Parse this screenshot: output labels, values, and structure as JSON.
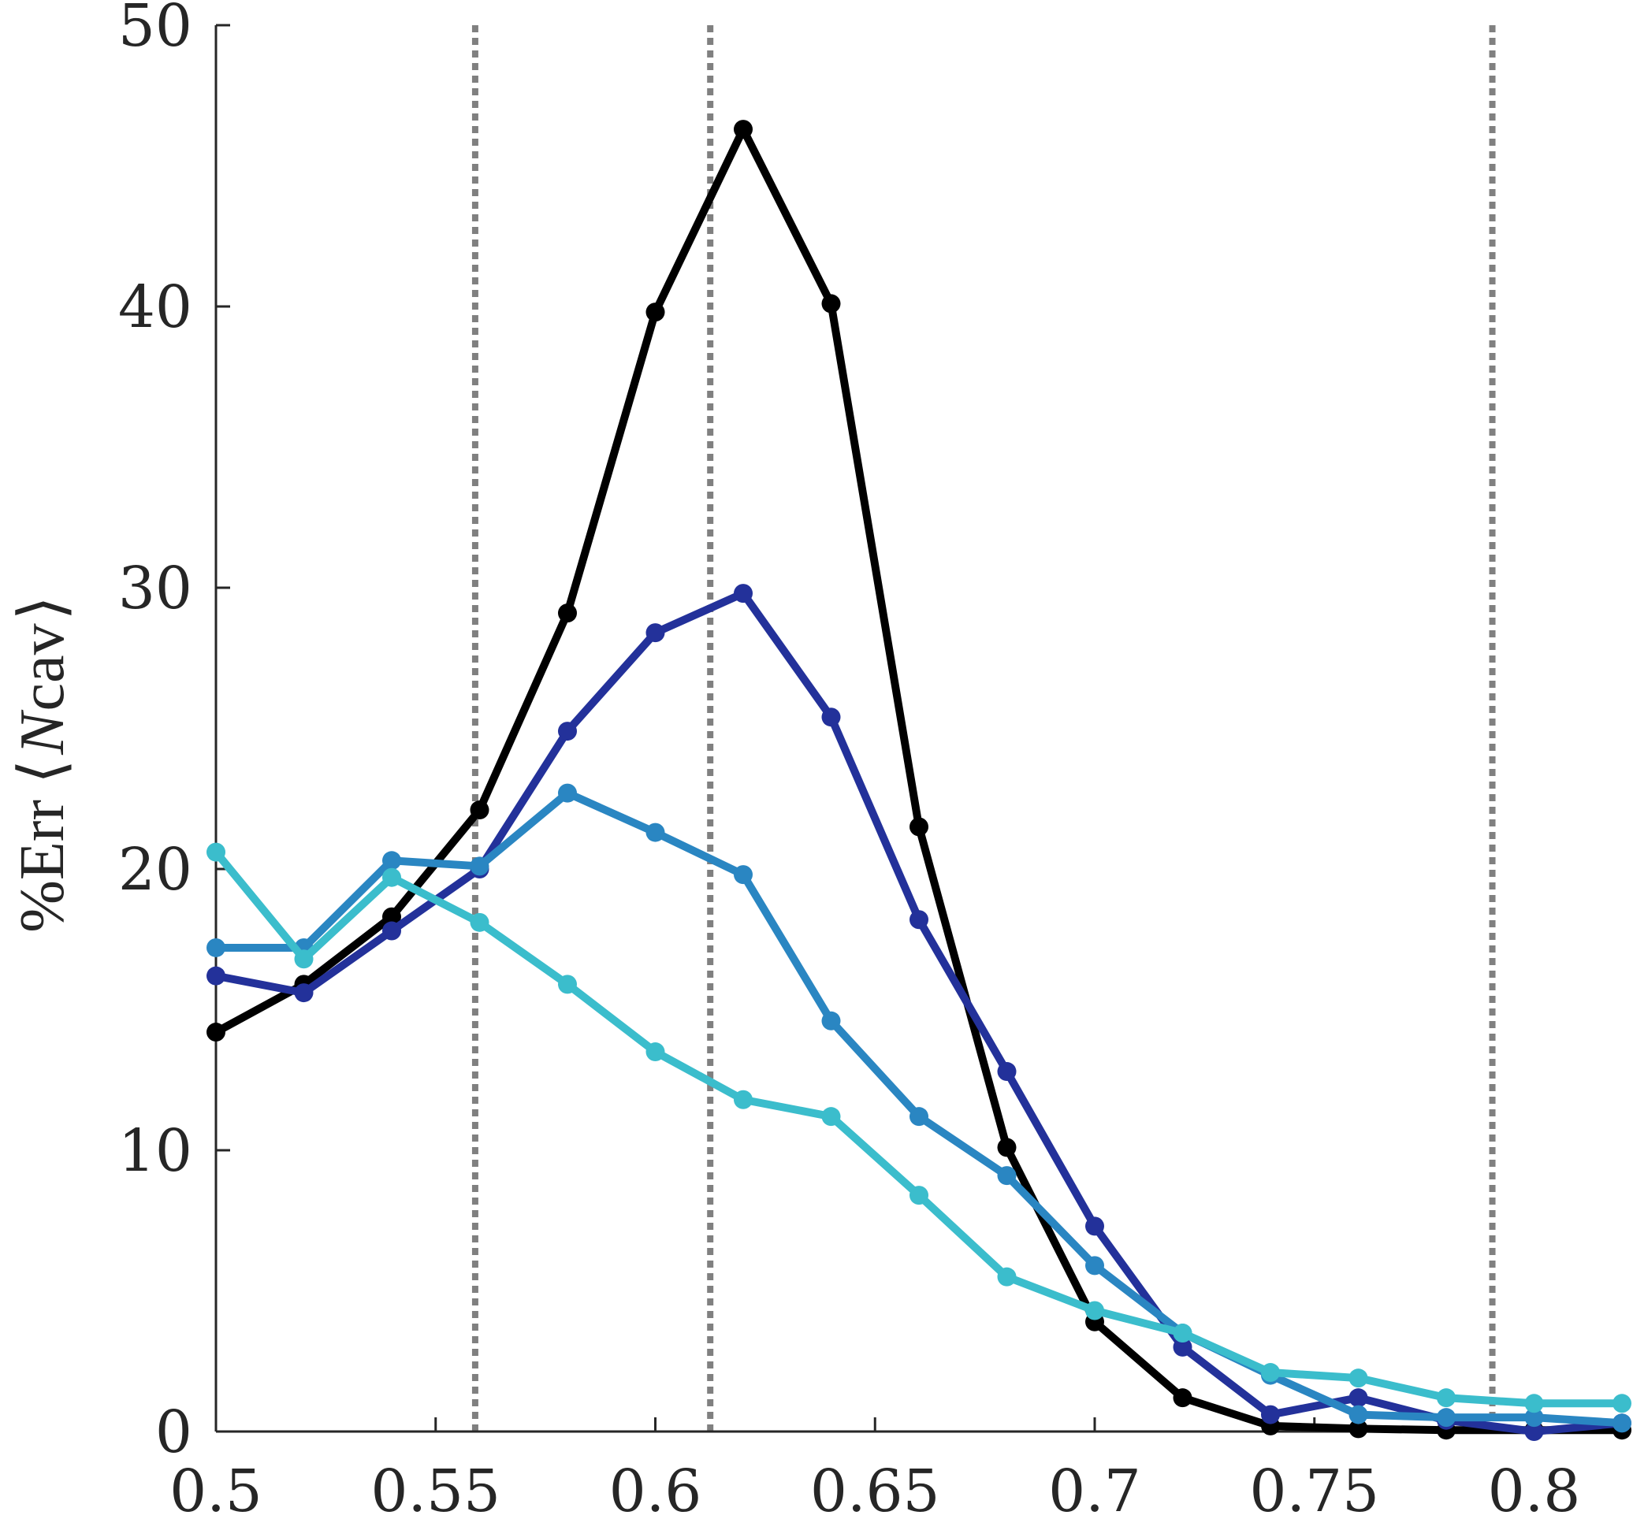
{
  "chart_data": {
    "type": "line",
    "title": "",
    "xlabel": "",
    "ylabel": {
      "prefix": "%Err ",
      "open_bracket": "⟨",
      "var": "N",
      "sub": "cav",
      "close_bracket": "⟩"
    },
    "xlim": [
      0.5,
      0.82
    ],
    "ylim": [
      0,
      50
    ],
    "xticks": [
      0.5,
      0.55,
      0.6,
      0.65,
      0.7,
      0.75,
      0.8
    ],
    "xtick_labels": [
      "0.5",
      "0.55",
      "0.6",
      "0.65",
      "0.7",
      "0.75",
      "0.8"
    ],
    "yticks": [
      0,
      10,
      20,
      30,
      40,
      50
    ],
    "ytick_labels": [
      "0",
      "10",
      "20",
      "30",
      "40",
      "50"
    ],
    "grid": false,
    "legend": "none",
    "reference_lines": {
      "style": "dotted",
      "color": "#808080",
      "x": [
        0.559,
        0.6125,
        0.7905
      ]
    },
    "x": [
      0.5,
      0.52,
      0.54,
      0.56,
      0.58,
      0.6,
      0.62,
      0.64,
      0.66,
      0.68,
      0.7,
      0.72,
      0.74,
      0.76,
      0.78,
      0.8,
      0.82
    ],
    "series": [
      {
        "color": "#000000",
        "values": [
          14.2,
          15.9,
          18.3,
          22.1,
          29.1,
          39.8,
          46.3,
          40.1,
          21.5,
          10.1,
          3.9,
          1.2,
          0.2,
          0.1,
          0.05,
          0.05,
          0.05
        ]
      },
      {
        "color": "#23319a",
        "values": [
          16.2,
          15.6,
          17.8,
          20.0,
          24.9,
          28.4,
          29.8,
          25.4,
          18.2,
          12.8,
          7.3,
          3.0,
          0.6,
          1.2,
          0.4,
          0.0,
          0.3
        ]
      },
      {
        "color": "#2a86c2",
        "values": [
          17.2,
          17.2,
          20.3,
          20.1,
          22.7,
          21.3,
          19.8,
          14.6,
          11.2,
          9.1,
          5.9,
          3.5,
          2.0,
          0.6,
          0.5,
          0.5,
          0.3
        ]
      },
      {
        "color": "#3bbdcc",
        "values": [
          20.6,
          16.8,
          19.7,
          18.1,
          15.9,
          13.5,
          11.8,
          11.2,
          8.4,
          5.5,
          4.3,
          3.5,
          2.1,
          1.9,
          1.2,
          1.0,
          1.0
        ]
      }
    ]
  }
}
